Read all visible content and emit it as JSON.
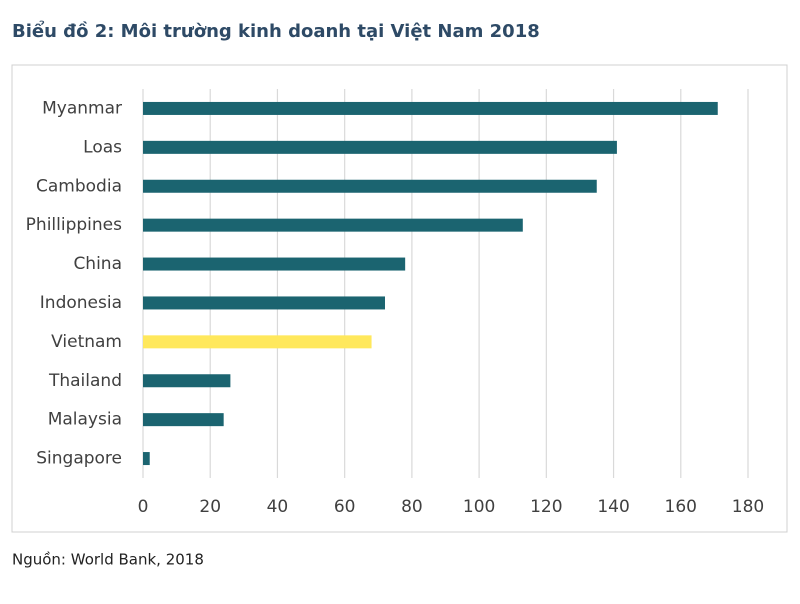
{
  "chart_data": {
    "type": "bar",
    "orientation": "horizontal",
    "title": "Biểu đồ 2: Môi trường kinh doanh tại Việt Nam 2018",
    "source": "Nguồn: World Bank, 2018",
    "categories": [
      "Myanmar",
      "Loas",
      "Cambodia",
      "Phillippines",
      "China",
      "Indonesia",
      "Vietnam",
      "Thailand",
      "Malaysia",
      "Singapore"
    ],
    "values": [
      171,
      141,
      135,
      113,
      78,
      72,
      68,
      26,
      24,
      2
    ],
    "colors": [
      "#1b6470",
      "#1b6470",
      "#1b6470",
      "#1b6470",
      "#1b6470",
      "#1b6470",
      "#ffe85c",
      "#1b6470",
      "#1b6470",
      "#1b6470"
    ],
    "xlim": [
      0,
      180
    ],
    "xticks": [
      0,
      20,
      40,
      60,
      80,
      100,
      120,
      140,
      160,
      180
    ],
    "grid": true
  }
}
